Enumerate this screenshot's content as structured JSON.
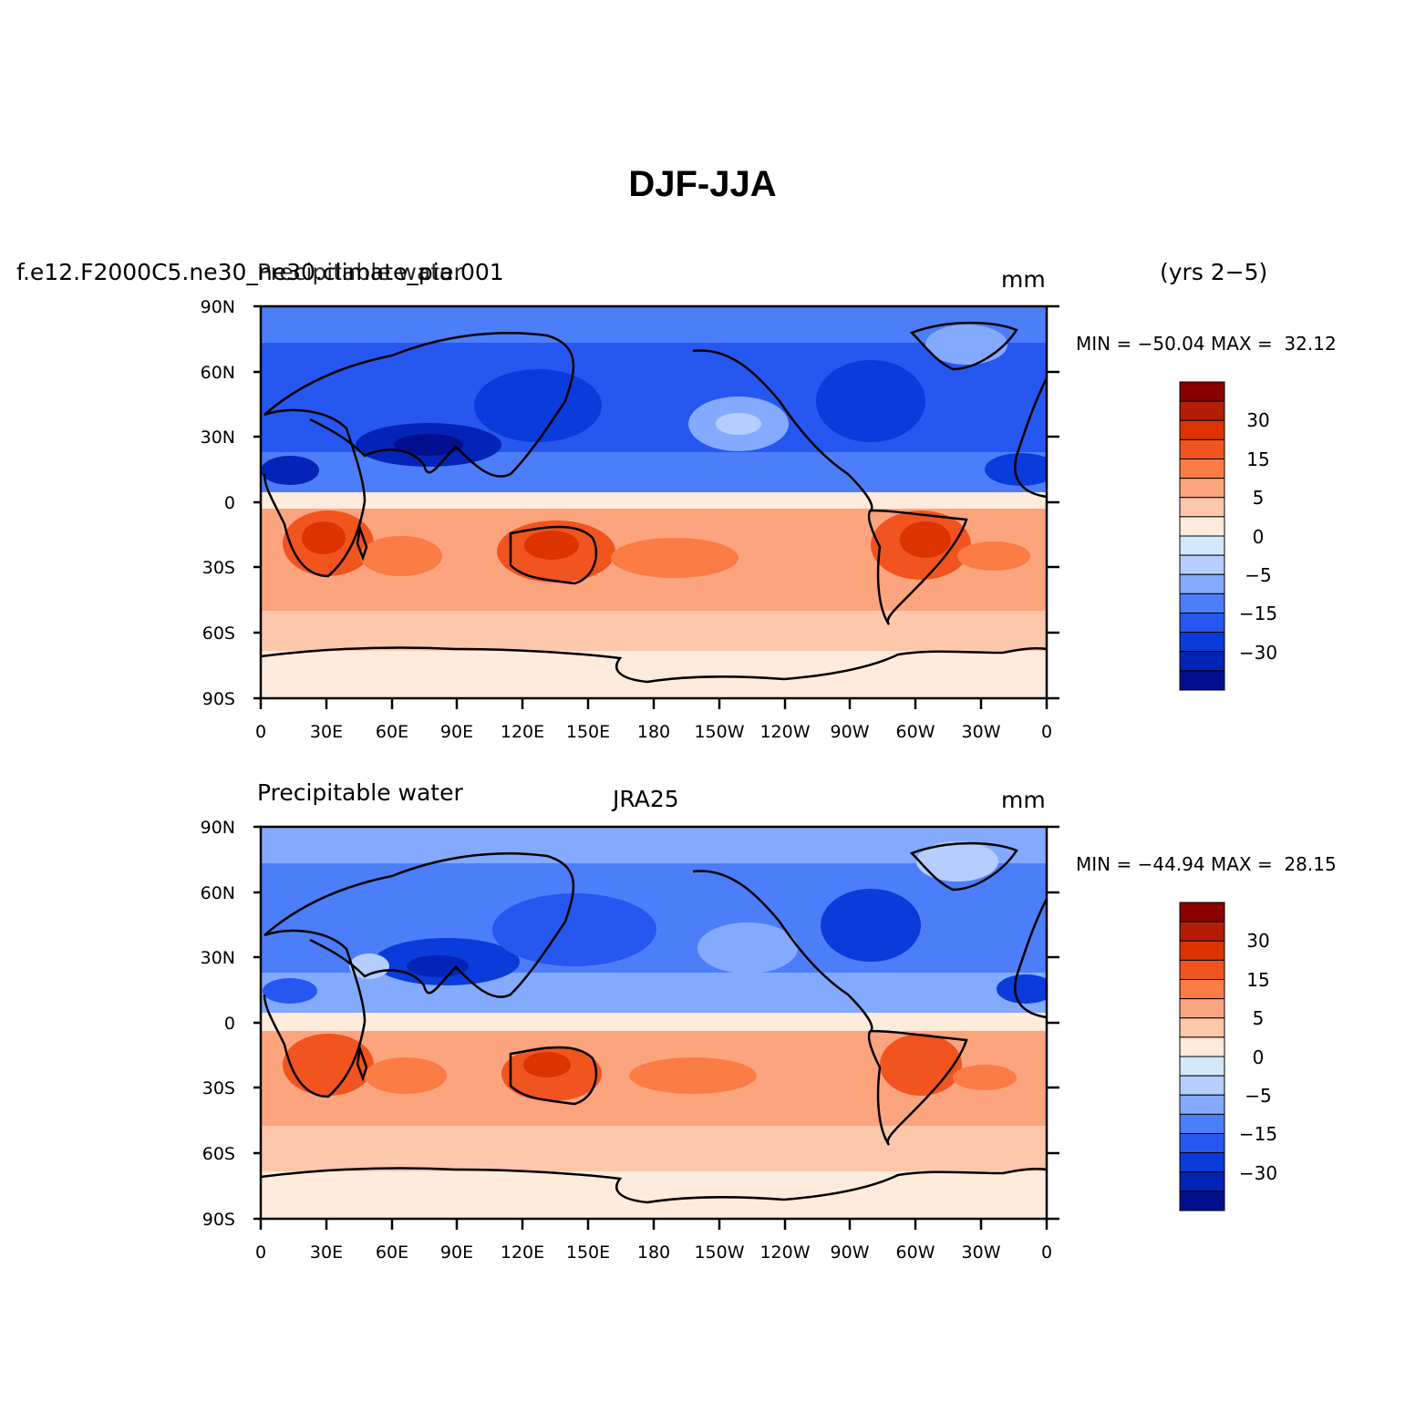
{
  "title": "DJF-JJA",
  "years": "(yrs 2−5)",
  "lat_labels": [
    "90N",
    "60N",
    "30N",
    "0",
    "30S",
    "60S",
    "90S"
  ],
  "lon_labels": [
    "0",
    "30E",
    "60E",
    "90E",
    "120E",
    "150E",
    "180",
    "150W",
    "120W",
    "90W",
    "60W",
    "30W",
    "0"
  ],
  "colorbar_labels": [
    "30",
    "15",
    "5",
    "0",
    "−5",
    "−15",
    "−30"
  ],
  "colors": {
    "levels": [
      "#8a0000",
      "#b31c05",
      "#dc3300",
      "#f2541f",
      "#fb7c45",
      "#fca47e",
      "#fdc7ac",
      "#feebdb",
      "#d4e8fc",
      "#b5cefd",
      "#84aaff",
      "#4d7ef9",
      "#2657f0",
      "#0a3bdb",
      "#0424b7",
      "#010f8e"
    ]
  },
  "panels": [
    {
      "case": "f.e12.F2000C5.ne30_ne30.climate_pia.001",
      "variable": "Precipitable water",
      "units": "mm",
      "min_max": "MIN = −50.04 MAX =  32.12"
    },
    {
      "case": "JRA25",
      "variable": "Precipitable water",
      "units": "mm",
      "min_max": "MIN = −44.94 MAX =  28.15"
    }
  ]
}
